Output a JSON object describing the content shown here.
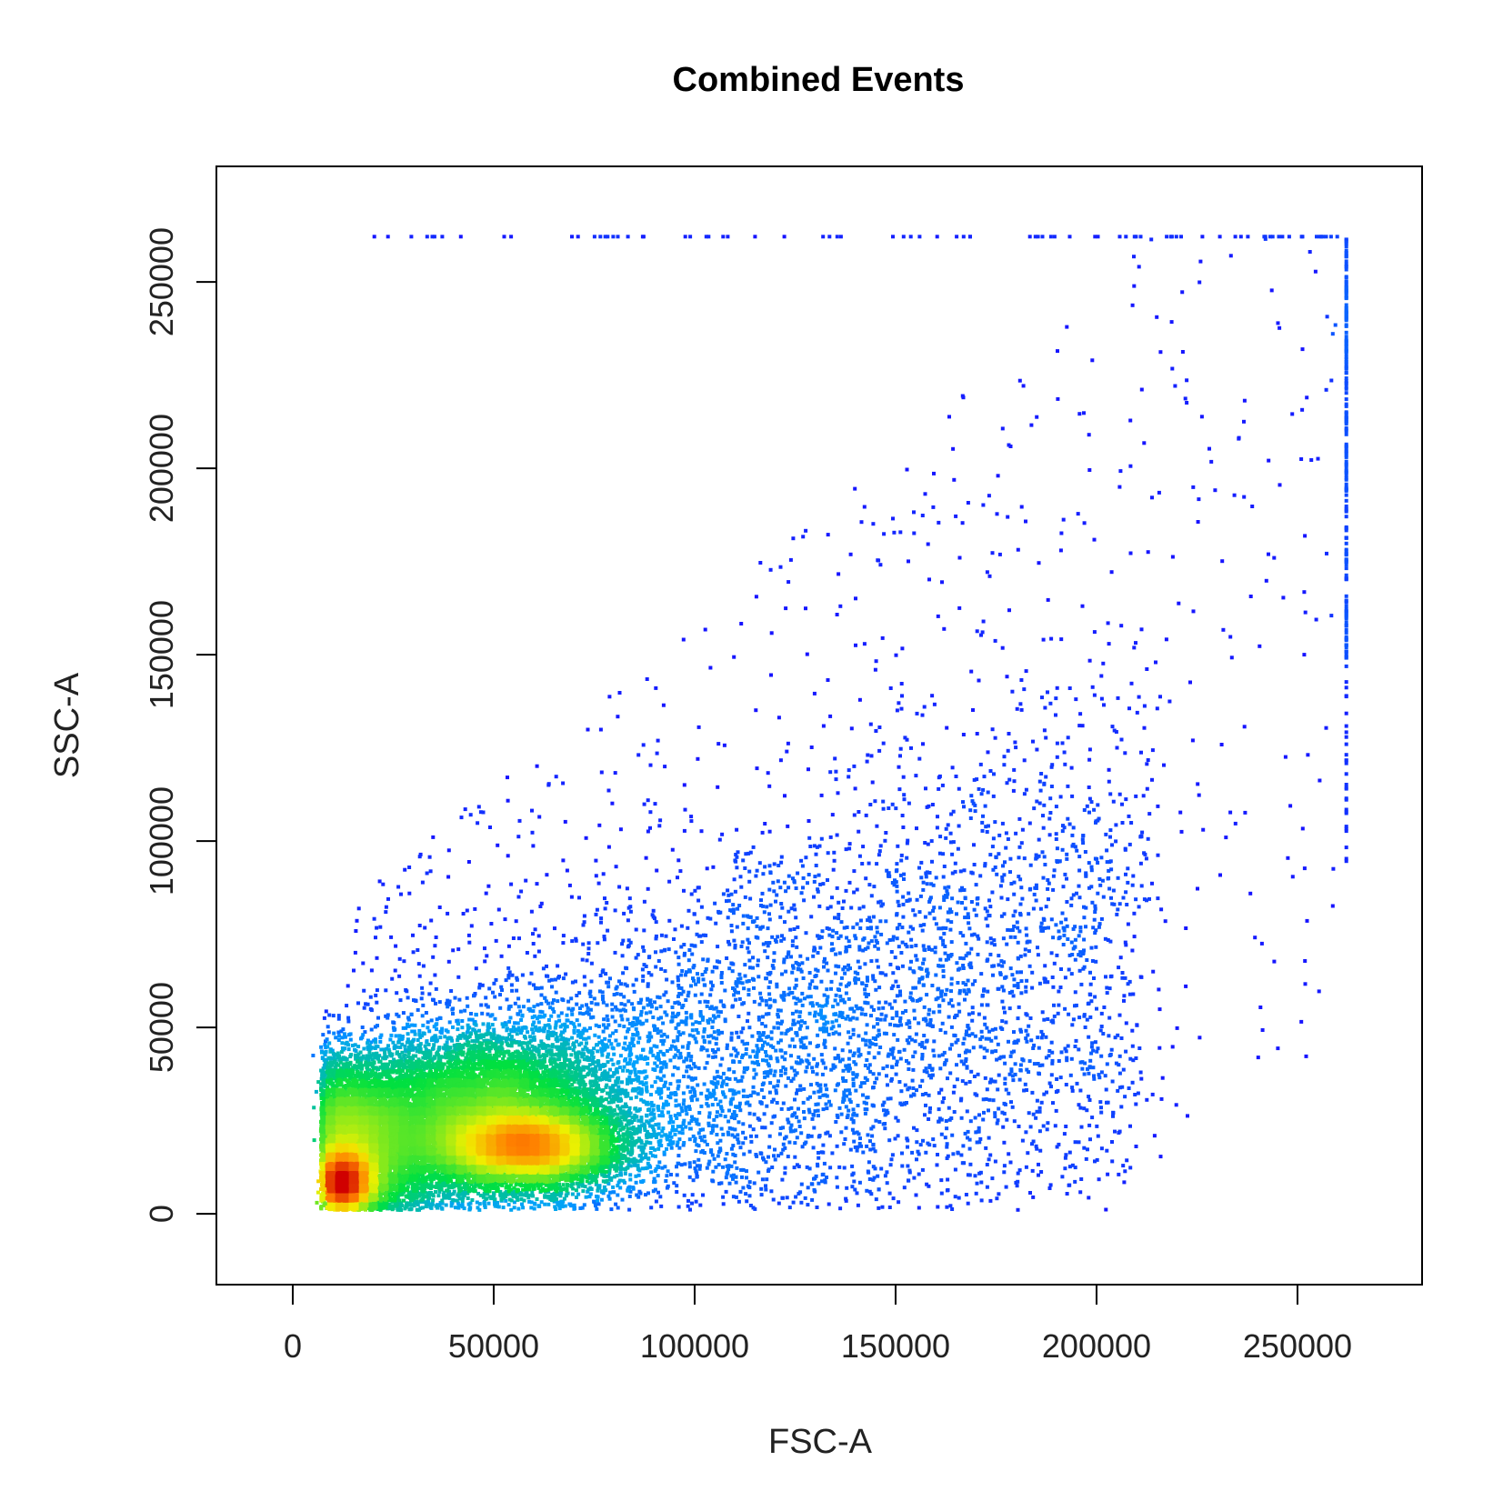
{
  "chart_data": {
    "type": "scatter",
    "title": "Combined Events",
    "xlabel": "FSC-A",
    "ylabel": "SSC-A",
    "xlim": [
      -19000,
      281000
    ],
    "ylim": [
      -19000,
      281000
    ],
    "xticks": [
      0,
      50000,
      100000,
      150000,
      200000,
      250000
    ],
    "yticks": [
      0,
      50000,
      100000,
      150000,
      200000,
      250000
    ],
    "xtick_labels": [
      "0",
      "50000",
      "100000",
      "150000",
      "200000",
      "250000"
    ],
    "ytick_labels": [
      "0",
      "50000",
      "100000",
      "150000",
      "200000",
      "250000"
    ],
    "grid": false,
    "legend": "none",
    "color_scale": "density (blue → cyan → green → yellow → orange → red)",
    "colors": {
      "low": "#1a00ff",
      "mid_low": "#00a0ff",
      "mid": "#00e040",
      "mid_high": "#f0f000",
      "high": "#ff8000",
      "peak": "#d00000"
    },
    "density_regions": [
      {
        "name": "cells-cluster",
        "x": 59000,
        "y": 18000,
        "sx": 9000,
        "sy": 4000,
        "density": "peak"
      },
      {
        "name": "cells-halo",
        "x": 52000,
        "y": 24000,
        "sx": 14000,
        "sy": 9000,
        "density": "high"
      },
      {
        "name": "debris-cluster",
        "x": 9000,
        "y": 8000,
        "sx": 4000,
        "sy": 3500,
        "density": "high"
      },
      {
        "name": "debris-halo",
        "x": 15000,
        "y": 18000,
        "sx": 8000,
        "sy": 9000,
        "density": "mid"
      }
    ],
    "saturation": {
      "x": 262143,
      "y": 262143
    }
  }
}
